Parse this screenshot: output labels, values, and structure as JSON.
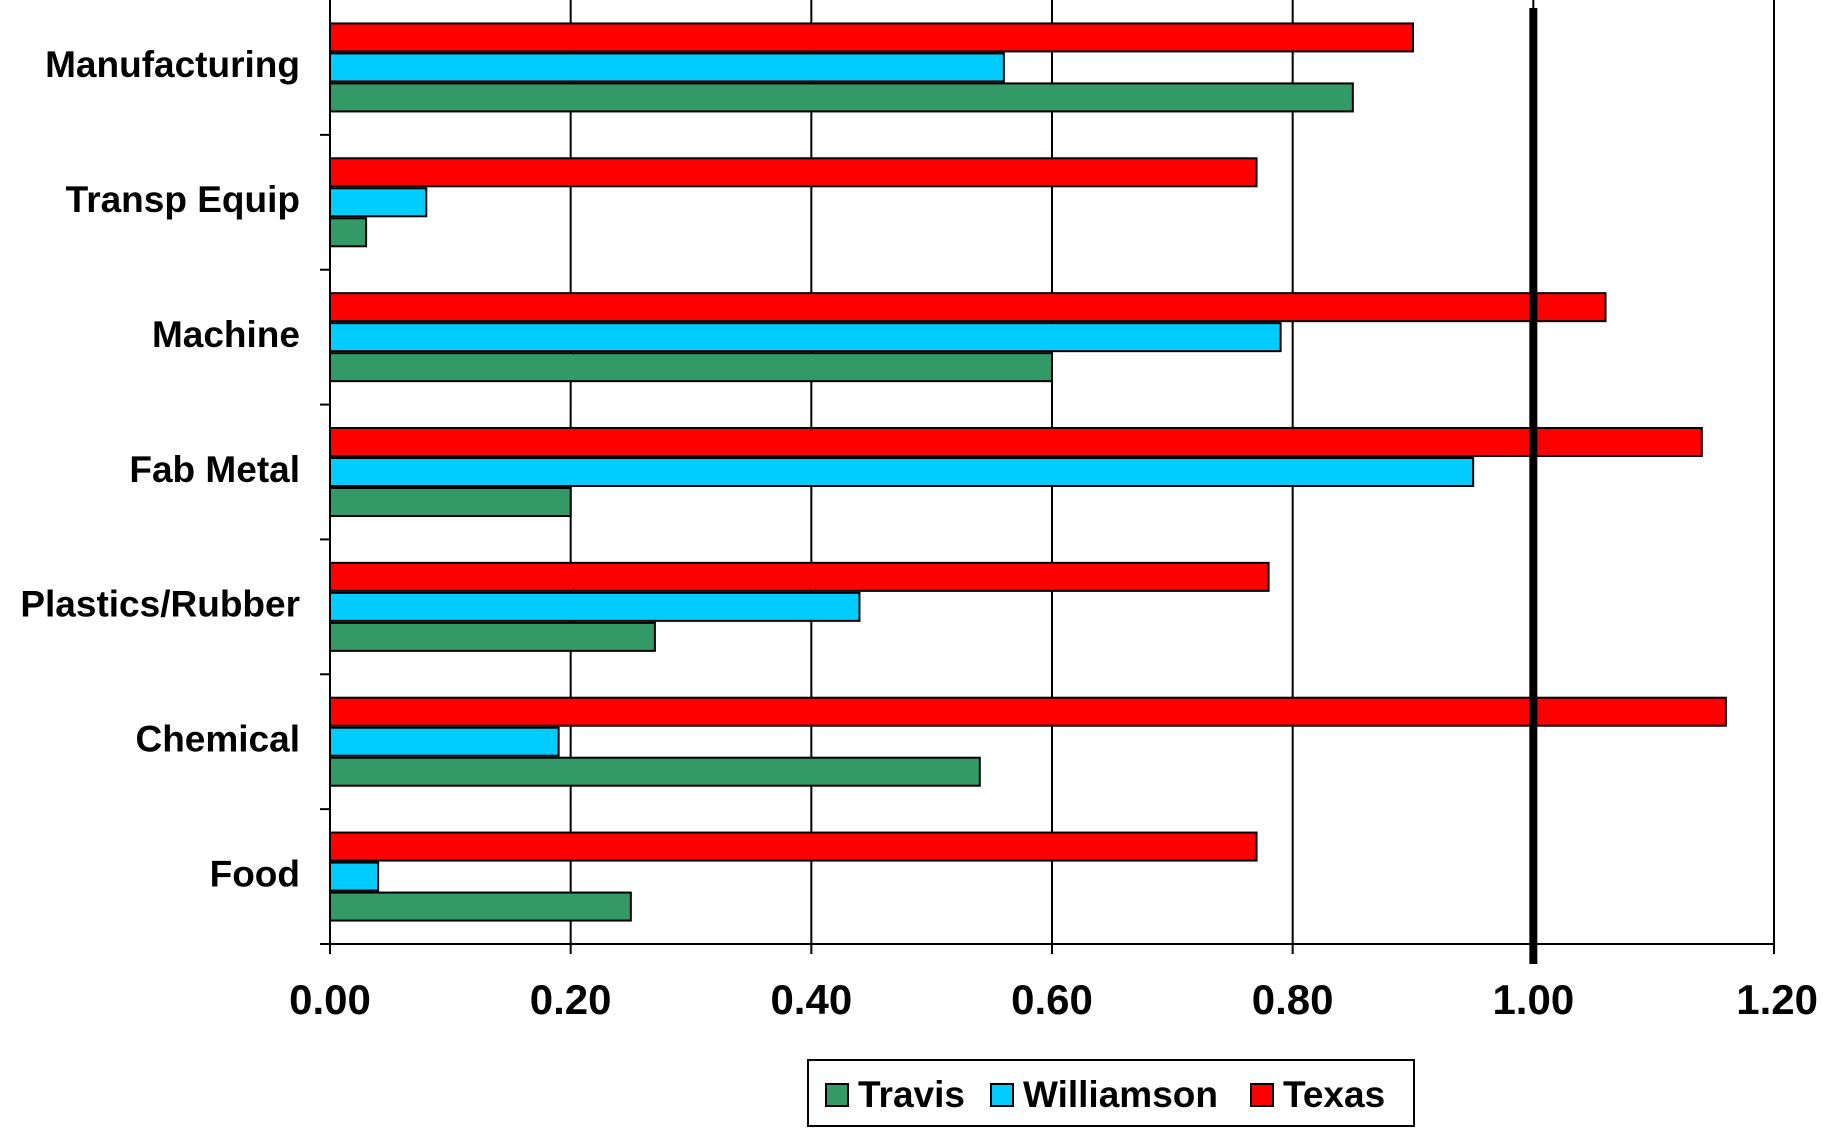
{
  "chart_data": {
    "type": "bar",
    "orientation": "horizontal",
    "categories": [
      "Manufacturing",
      "Transp Equip",
      "Machine",
      "Fab Metal",
      "Plastics/Rubber",
      "Chemical",
      "Food"
    ],
    "series": [
      {
        "name": "Texas",
        "color": "#ff0000",
        "values": [
          0.9,
          0.77,
          1.06,
          1.14,
          0.78,
          1.16,
          0.77
        ]
      },
      {
        "name": "Williamson",
        "color": "#00ccff",
        "values": [
          0.56,
          0.08,
          0.79,
          0.95,
          0.44,
          0.19,
          0.04
        ]
      },
      {
        "name": "Travis",
        "color": "#339966",
        "values": [
          0.85,
          0.03,
          0.6,
          0.2,
          0.27,
          0.54,
          0.25
        ]
      }
    ],
    "xlim": [
      0,
      1.2
    ],
    "xticks": [
      "0.00",
      "0.20",
      "0.40",
      "0.60",
      "0.80",
      "1.00",
      "1.20"
    ],
    "reference_line": 1.0,
    "grid": "vertical",
    "legend": {
      "position": "bottom-center",
      "order": [
        "Travis",
        "Williamson",
        "Texas"
      ]
    }
  }
}
